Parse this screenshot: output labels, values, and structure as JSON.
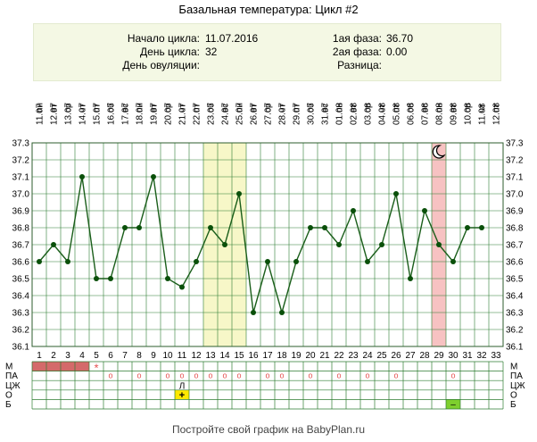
{
  "title": "Базальная температура: Цикл #2",
  "info": {
    "start_label": "Начало цикла:",
    "start_value": "11.07.2016",
    "day_label": "День цикла:",
    "day_value": "32",
    "ovulation_label": "День овуляции:",
    "ovulation_value": "",
    "phase1_label": "1ая фаза:",
    "phase1_value": "36.70",
    "phase2_label": "2ая фаза:",
    "phase2_value": "0.00",
    "diff_label": "Разница:",
    "diff_value": ""
  },
  "footer": "Постройте свой график на BabyPlan.ru",
  "colors": {
    "line": "#1a5e1a",
    "point": "#0a500a",
    "grid": "#2e7d32",
    "fertile": "#f7f7c8",
    "marked_day": "#f7c2c2",
    "menses": "#d46a6a",
    "mark_red": "#e55050",
    "mark_yellow": "#ffe800",
    "mark_green": "#7ecf2e"
  },
  "chart_data": {
    "type": "line",
    "title": "Базальная температура: Цикл #2",
    "ylim": [
      36.1,
      37.3
    ],
    "y_ticks": [
      "36.1",
      "36.2",
      "36.3",
      "36.4",
      "36.5",
      "36.6",
      "36.7",
      "36.8",
      "36.9",
      "37.0",
      "37.1",
      "37.2",
      "37.3"
    ],
    "x_days": [
      "1",
      "2",
      "3",
      "4",
      "5",
      "6",
      "7",
      "8",
      "9",
      "10",
      "11",
      "12",
      "13",
      "14",
      "15",
      "16",
      "17",
      "18",
      "19",
      "20",
      "21",
      "22",
      "23",
      "24",
      "25",
      "26",
      "27",
      "28",
      "29",
      "30",
      "31",
      "32",
      "33"
    ],
    "weekdays": [
      "пн",
      "вт",
      "ср",
      "чт",
      "пт",
      "сб",
      "вс",
      "пн",
      "вт",
      "ср",
      "чт",
      "пт",
      "сб",
      "вс",
      "пн",
      "вт",
      "ср",
      "чт",
      "пт",
      "сб",
      "вс",
      "пн",
      "вт",
      "ср",
      "чт",
      "пт",
      "сб",
      "вс",
      "пн",
      "вт",
      "ср",
      "чт",
      "пт"
    ],
    "dates": [
      "11.07",
      "12.07",
      "13.07",
      "14.07",
      "15.07",
      "16.07",
      "17.07",
      "18.07",
      "19.07",
      "20.07",
      "21.07",
      "22.07",
      "23.07",
      "24.07",
      "25.07",
      "26.07",
      "27.07",
      "28.07",
      "29.07",
      "30.07",
      "31.07",
      "01.08",
      "02.08",
      "03.08",
      "04.08",
      "05.08",
      "06.08",
      "07.08",
      "08.08",
      "09.08",
      "10.08",
      "11.08",
      "12.08"
    ],
    "temperatures": [
      36.6,
      36.7,
      36.6,
      37.1,
      36.5,
      36.5,
      36.8,
      36.8,
      37.1,
      36.5,
      36.45,
      36.6,
      36.8,
      36.7,
      37.0,
      36.3,
      36.6,
      36.3,
      36.6,
      36.8,
      36.8,
      36.7,
      36.9,
      36.6,
      36.7,
      37.0,
      36.5,
      36.9,
      36.7,
      36.6,
      36.8,
      36.8
    ],
    "highlight_days": [
      13,
      14,
      15
    ],
    "marked_day": 29,
    "marked_day_icon": "moon-icon",
    "grid": true
  },
  "marks": {
    "row_labels": [
      "М",
      "ПА",
      "ЦЖ",
      "О",
      "Б"
    ],
    "menses_days": [
      1,
      2,
      3,
      4
    ],
    "star_day": 5,
    "star_glyph": "*",
    "pa_days": [
      6,
      8,
      10,
      11,
      12,
      13,
      14,
      15,
      17,
      18,
      20,
      22,
      24,
      26,
      30
    ],
    "pa_glyph": "o",
    "cj": {
      "day": 11,
      "text": "Л"
    },
    "o": {
      "day": 11,
      "text": "+"
    },
    "b": {
      "day": 30,
      "text": "–"
    }
  }
}
